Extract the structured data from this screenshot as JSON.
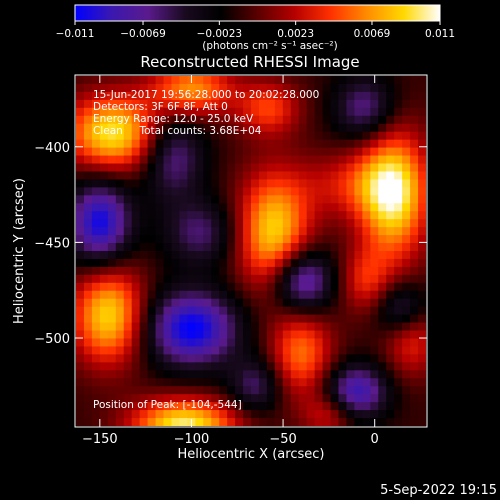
{
  "chart_data": {
    "type": "heatmap",
    "title": "Reconstructed RHESSI Image",
    "xlabel": "Heliocentric X (arcsec)",
    "ylabel": "Heliocentric Y (arcsec)",
    "xlim": [
      -163,
      28
    ],
    "ylim": [
      -546,
      -363
    ],
    "x_ticks": [
      -150,
      -100,
      -50,
      0
    ],
    "y_ticks": [
      -400,
      -450,
      -500
    ],
    "x_tick_labels": [
      "−150",
      "−100",
      "−50",
      "0"
    ],
    "y_tick_labels": [
      "−400",
      "−450",
      "−500"
    ],
    "colorbar": {
      "min": -0.011,
      "max": 0.011,
      "ticks": [
        -0.011,
        -0.0069,
        -0.0023,
        0.0023,
        0.0069,
        0.011
      ],
      "tick_labels": [
        "−0.011",
        "−0.0069",
        "−0.0023",
        "0.0023",
        "0.0069",
        "0.011"
      ],
      "units_label": "(photons cm⁻² s⁻¹ asec⁻²)",
      "stops": [
        "#0000ff",
        "#3a18b0",
        "#5a1a8c",
        "#1a0a20",
        "#000000",
        "#5a0000",
        "#b40000",
        "#ff3000",
        "#ff8c00",
        "#ffd800",
        "#ffffff"
      ]
    },
    "annotations": [
      "15-Jun-2017 19:56:28.000 to 20:02:28.000",
      "Detectors: 3F 6F 8F, Att 0",
      "Energy Range: 12.0 - 25.0 keV",
      "Clean     Total counts: 3.68E+04"
    ],
    "peak_label": "Position of Peak: [-104,-544]",
    "peak": {
      "x": -104,
      "y": -544
    },
    "sources": [
      {
        "x": -143,
        "y": -393,
        "sx": 18,
        "sy": 14,
        "amp": 0.0105
      },
      {
        "x": -100,
        "y": -370,
        "sx": 16,
        "sy": 10,
        "amp": 0.0078
      },
      {
        "x": -58,
        "y": -380,
        "sx": 12,
        "sy": 10,
        "amp": 0.0055
      },
      {
        "x": -55,
        "y": -445,
        "sx": 14,
        "sy": 22,
        "amp": 0.0099
      },
      {
        "x": -12,
        "y": -420,
        "sx": 20,
        "sy": 12,
        "amp": 0.004
      },
      {
        "x": 10,
        "y": -425,
        "sx": 13,
        "sy": 24,
        "amp": 0.0108
      },
      {
        "x": -5,
        "y": -470,
        "sx": 10,
        "sy": 12,
        "amp": 0.0045
      },
      {
        "x": -145,
        "y": -488,
        "sx": 14,
        "sy": 18,
        "amp": 0.01
      },
      {
        "x": -40,
        "y": -508,
        "sx": 12,
        "sy": 16,
        "amp": 0.0068
      },
      {
        "x": -25,
        "y": -540,
        "sx": 10,
        "sy": 8,
        "amp": 0.004
      },
      {
        "x": -104,
        "y": -546,
        "sx": 20,
        "sy": 10,
        "amp": 0.011
      },
      {
        "x": 20,
        "y": -500,
        "sx": 10,
        "sy": 14,
        "amp": 0.005
      },
      {
        "x": -110,
        "y": -405,
        "sx": 12,
        "sy": 16,
        "amp": -0.006
      },
      {
        "x": -150,
        "y": -440,
        "sx": 12,
        "sy": 16,
        "amp": -0.0095
      },
      {
        "x": -95,
        "y": -445,
        "sx": 14,
        "sy": 12,
        "amp": -0.005
      },
      {
        "x": -100,
        "y": -495,
        "sx": 18,
        "sy": 14,
        "amp": -0.01
      },
      {
        "x": -5,
        "y": -380,
        "sx": 12,
        "sy": 12,
        "amp": -0.006
      },
      {
        "x": -40,
        "y": -470,
        "sx": 12,
        "sy": 12,
        "amp": -0.009
      },
      {
        "x": 15,
        "y": -485,
        "sx": 10,
        "sy": 10,
        "amp": -0.006
      },
      {
        "x": -10,
        "y": -528,
        "sx": 12,
        "sy": 10,
        "amp": -0.008
      },
      {
        "x": -65,
        "y": -525,
        "sx": 10,
        "sy": 10,
        "amp": -0.005
      }
    ]
  },
  "footer_date": "5-Sep-2022 19:15"
}
